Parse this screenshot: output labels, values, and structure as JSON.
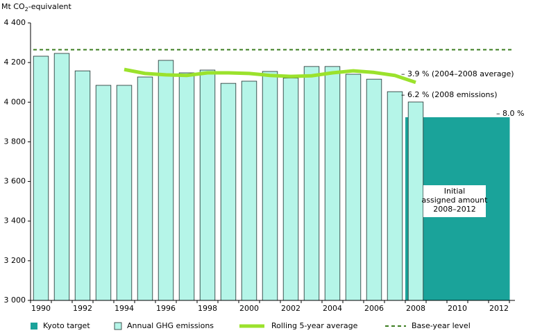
{
  "chart_data": {
    "type": "bar",
    "y_label": {
      "text": "Mt CO",
      "subscript": "2",
      "suffix": "-equivalent"
    },
    "categories": [
      "1990",
      null,
      "1992",
      null,
      "1994",
      null,
      "1996",
      null,
      "1998",
      null,
      "2000",
      null,
      "2002",
      null,
      "2004",
      null,
      "2006",
      null,
      "2008",
      null,
      "2010",
      null,
      "2012"
    ],
    "series": [
      {
        "name": "Kyoto target",
        "kind": "block",
        "color": "#1aa39a",
        "values": [
          null,
          null,
          null,
          null,
          null,
          null,
          null,
          null,
          null,
          null,
          null,
          null,
          null,
          null,
          null,
          null,
          null,
          null,
          3924,
          3924,
          3924,
          3924,
          3924
        ]
      },
      {
        "name": "Annual GHG emissions",
        "kind": "bar",
        "color": "#b5f5e8",
        "values": [
          4232,
          4246,
          4158,
          4085,
          4085,
          4127,
          4211,
          4148,
          4162,
          4095,
          4106,
          4155,
          4122,
          4180,
          4180,
          4141,
          4116,
          4053,
          4001,
          null,
          null,
          null,
          null
        ]
      },
      {
        "name": "Rolling 5-year average",
        "kind": "line",
        "color": "#9be22c",
        "values": [
          null,
          null,
          null,
          null,
          4165,
          4145,
          4138,
          4135,
          4148,
          4148,
          4145,
          4135,
          4130,
          4133,
          4148,
          4158,
          4150,
          4135,
          4100,
          null,
          null,
          null,
          null
        ]
      },
      {
        "name": "Base-year level",
        "kind": "hline",
        "color": "#3b7d1f",
        "value": 4265
      }
    ],
    "annotations": [
      "– 3.9 % (2004–2008 average)",
      "– 6.2 % (2008 emissions)",
      "– 8.0 %"
    ],
    "block_label": [
      "Initial",
      "assigned amount",
      "2008–2012"
    ],
    "ylim": [
      3000,
      4400
    ],
    "yticks": [
      {
        "value": 3000,
        "label": "3 000"
      },
      {
        "value": 3200,
        "label": "3 200"
      },
      {
        "value": 3400,
        "label": "3 400"
      },
      {
        "value": 3600,
        "label": "3 600"
      },
      {
        "value": 3800,
        "label": "3 800"
      },
      {
        "value": 4000,
        "label": "4 000"
      },
      {
        "value": 4200,
        "label": "4 200"
      },
      {
        "value": 4400,
        "label": "4 400"
      }
    ]
  }
}
